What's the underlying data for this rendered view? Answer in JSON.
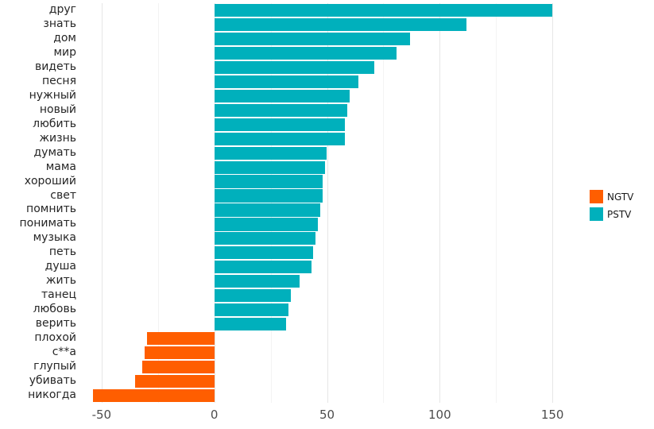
{
  "chart_data": {
    "type": "bar",
    "orientation": "horizontal",
    "title": "",
    "xlabel": "",
    "ylabel": "",
    "categories": [
      "друг",
      "знать",
      "дом",
      "мир",
      "видеть",
      "песня",
      "нужный",
      "новый",
      "любить",
      "жизнь",
      "думать",
      "мама",
      "хороший",
      "свет",
      "помнить",
      "понимать",
      "музыка",
      "петь",
      "душа",
      "жить",
      "танец",
      "любовь",
      "верить",
      "плохой",
      "с**а",
      "глупый",
      "убивать",
      "никогда"
    ],
    "values": [
      150,
      112,
      87,
      81,
      71,
      64,
      60,
      59,
      58,
      58,
      50,
      49,
      48,
      48,
      47,
      46,
      45,
      44,
      43,
      38,
      34,
      33,
      32,
      -30,
      -31,
      -32,
      -35,
      -54
    ],
    "legend": [
      {
        "label": "NGTV",
        "color": "#FF5E00"
      },
      {
        "label": "PSTV",
        "color": "#00B0BC"
      }
    ],
    "legend_position": "right",
    "xlim": [
      -57,
      157
    ],
    "xticks": [
      -50,
      0,
      50,
      100,
      150
    ],
    "minor_ticks": [
      -25,
      25,
      75,
      125
    ],
    "grid": true,
    "background": "#ffffff"
  }
}
